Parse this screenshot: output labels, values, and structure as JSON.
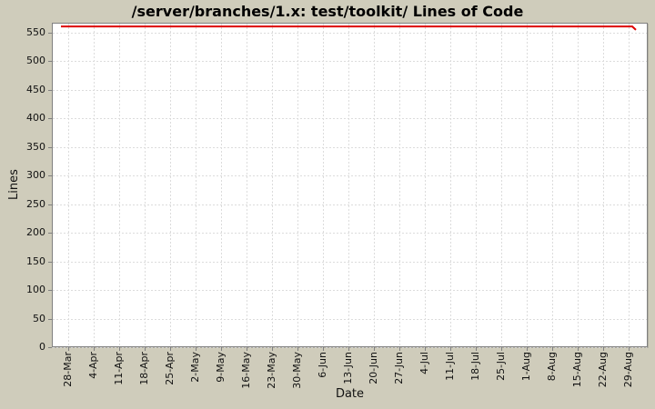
{
  "chart_data": {
    "type": "line",
    "title": "/server/branches/1.x: test/toolkit/ Lines of Code",
    "xlabel": "Date",
    "ylabel": "Lines",
    "grid": true,
    "legend": "none",
    "x_tick_labels": [
      "28-Mar",
      "4-Apr",
      "11-Apr",
      "18-Apr",
      "25-Apr",
      "2-May",
      "9-May",
      "16-May",
      "23-May",
      "30-May",
      "6-Jun",
      "13-Jun",
      "20-Jun",
      "27-Jun",
      "4-Jul",
      "11-Jul",
      "18-Jul",
      "25-Jul",
      "1-Aug",
      "8-Aug",
      "15-Aug",
      "22-Aug",
      "29-Aug"
    ],
    "x_tick_days": [
      2,
      9,
      16,
      23,
      30,
      37,
      44,
      51,
      58,
      65,
      72,
      79,
      86,
      93,
      100,
      107,
      114,
      121,
      128,
      135,
      142,
      149,
      156
    ],
    "xlim_days": [
      -2.5,
      161.25
    ],
    "yticks": [
      0,
      50,
      100,
      150,
      200,
      250,
      300,
      350,
      400,
      450,
      500,
      550
    ],
    "ylim": [
      0,
      567.5
    ],
    "series": [
      {
        "name": "lines-of-code",
        "color": "#dd0000",
        "points": [
          {
            "day": 0,
            "value": 561
          },
          {
            "day": 157,
            "value": 561
          },
          {
            "day": 158,
            "value": 555
          }
        ]
      }
    ]
  },
  "colors": {
    "background": "#cfccbb",
    "plot_background": "#ffffff",
    "gridline": "#dcdcdc",
    "plot_border": "#808080",
    "tick_mark": "#808080",
    "series_red": "#dd0000",
    "text": "#111111",
    "title_text": "#000000"
  }
}
